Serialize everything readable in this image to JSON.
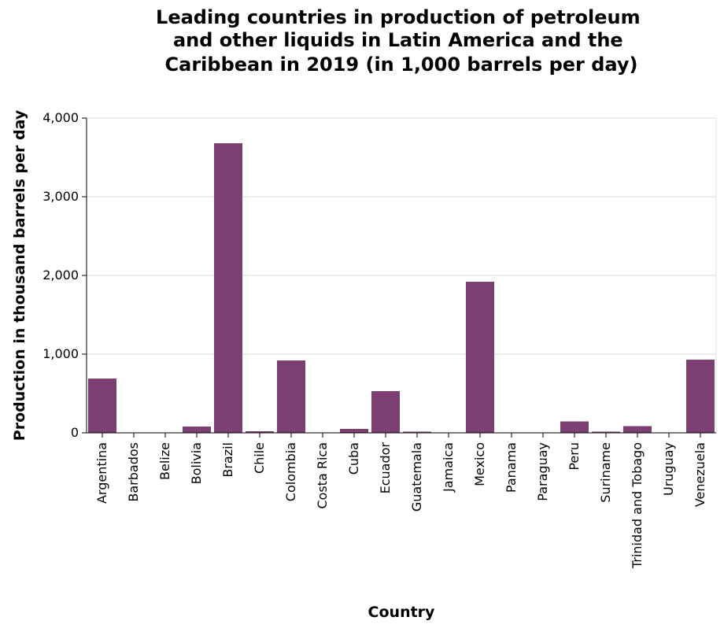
{
  "chart_data": {
    "type": "bar",
    "title": "Leading countries in production of petroleum and other liquids in Latin America and the Caribbean in 2019 (in 1,000 barrels per day)",
    "title_lines": [
      "Leading countries in production of petroleum",
      "and other liquids in Latin America and the",
      "Caribbean in 2019 (in 1,000 barrels per day)"
    ],
    "xlabel": "Country",
    "ylabel": "Production in thousand barrels per day",
    "categories": [
      "Argentina",
      "Barbados",
      "Belize",
      "Bolivia",
      "Brazil",
      "Chile",
      "Colombia",
      "Costa Rica",
      "Cuba",
      "Ecuador",
      "Guatemala",
      "Jamaica",
      "Mexico",
      "Panama",
      "Paraguay",
      "Peru",
      "Suriname",
      "Trinidad and Tobago",
      "Uruguay",
      "Venezuela"
    ],
    "values": [
      690,
      1,
      2,
      80,
      3680,
      20,
      920,
      0,
      50,
      530,
      15,
      0,
      1920,
      0,
      5,
      145,
      15,
      85,
      3,
      930
    ],
    "ylim": [
      0,
      4000
    ],
    "yticks": [
      0,
      1000,
      2000,
      3000,
      4000
    ],
    "ytick_labels": [
      "0",
      "1,000",
      "2,000",
      "3,000",
      "4,000"
    ],
    "grid": true,
    "legend": "none",
    "bar_color": "#7b3f72",
    "grid_color": "#dddddd"
  }
}
